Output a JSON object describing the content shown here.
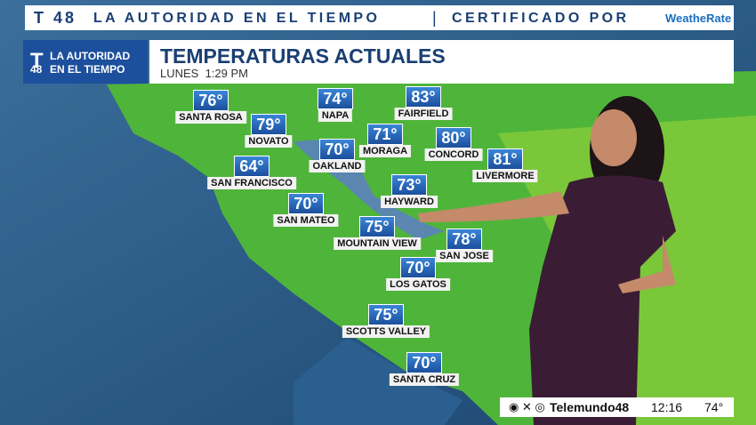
{
  "banner": {
    "station": "48",
    "text": "LA AUTORIDAD EN EL TIEMPO",
    "certified": "CERTIFICADO POR",
    "brand": "WeatheRate"
  },
  "logo": {
    "line1": "LA AUTORIDAD",
    "line2": "EN EL TIEMPO",
    "number": "48"
  },
  "header": {
    "title": "TEMPERATURAS ACTUALES",
    "subtitle": "LUNES  1:29 PM"
  },
  "cities": [
    {
      "name": "SANTA ROSA",
      "temp": "76°"
    },
    {
      "name": "NAPA",
      "temp": "74°"
    },
    {
      "name": "FAIRFIELD",
      "temp": "83°"
    },
    {
      "name": "NOVATO",
      "temp": "79°"
    },
    {
      "name": "OAKLAND",
      "temp": "70°"
    },
    {
      "name": "MORAGA",
      "temp": "71°"
    },
    {
      "name": "CONCORD",
      "temp": "80°"
    },
    {
      "name": "LIVERMORE",
      "temp": "81°"
    },
    {
      "name": "SAN FRANCISCO",
      "temp": "64°"
    },
    {
      "name": "HAYWARD",
      "temp": "73°"
    },
    {
      "name": "SAN MATEO",
      "temp": "70°"
    },
    {
      "name": "MOUNTAIN VIEW",
      "temp": "75°"
    },
    {
      "name": "SAN JOSE",
      "temp": "78°"
    },
    {
      "name": "LOS GATOS",
      "temp": "70°"
    },
    {
      "name": "SCOTTS VALLEY",
      "temp": "75°"
    },
    {
      "name": "SANTA CRUZ",
      "temp": "70°"
    }
  ],
  "footer": {
    "social": "Telemundo48",
    "time": "12:16",
    "temp": "74°"
  }
}
